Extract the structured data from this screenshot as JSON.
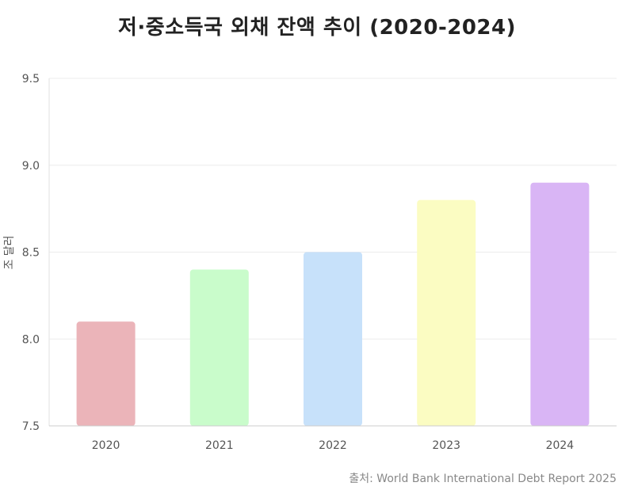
{
  "chart_data": {
    "type": "bar",
    "title": "저·중소득국 외채 잔액 추이 (2020-2024)",
    "xlabel": "",
    "ylabel": "조 달러",
    "categories": [
      "2020",
      "2021",
      "2022",
      "2023",
      "2024"
    ],
    "values": [
      8.1,
      8.4,
      8.5,
      8.8,
      8.9
    ],
    "ylim": [
      7.5,
      9.5
    ],
    "yticks": [
      "7.5",
      "8.0",
      "8.5",
      "9.0",
      "9.5"
    ],
    "colors": [
      "#ebb4b9",
      "#c9fccb",
      "#c7e1fa",
      "#fbfcc2",
      "#d9b5f5"
    ],
    "grid": true,
    "legend": "none"
  },
  "source": "출처: World Bank International Debt Report 2025"
}
